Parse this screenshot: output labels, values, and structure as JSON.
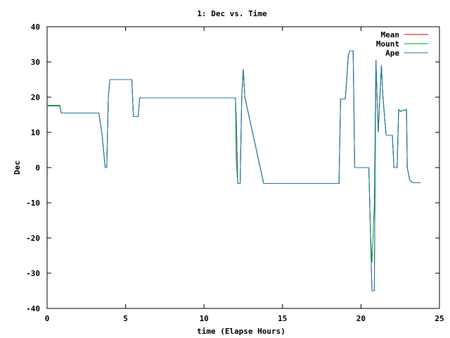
{
  "chart_data": {
    "type": "line",
    "title": "1: Dec vs. Time",
    "xlabel": "time (Elapse Hours)",
    "ylabel": "Dec",
    "xlim": [
      0,
      25
    ],
    "ylim": [
      -40,
      40
    ],
    "xticks": [
      "0",
      "5",
      "10",
      "15",
      "20",
      "25"
    ],
    "yticks": [
      "40",
      "30",
      "20",
      "10",
      "0",
      "-10",
      "-20",
      "-30",
      "-40"
    ],
    "xtick_values": [
      0,
      5,
      10,
      15,
      20,
      25
    ],
    "ytick_values": [
      40,
      30,
      20,
      10,
      0,
      -10,
      -20,
      -30,
      -40
    ],
    "grid": false,
    "legend_position": "top-right",
    "series": [
      {
        "name": "Mean",
        "color": "#cc0000",
        "x": [
          0,
          0.8,
          0.9,
          3.3,
          3.5,
          3.7,
          3.8,
          3.9,
          4.0,
          5.4,
          5.5,
          5.8,
          5.9,
          12.0,
          12.05,
          12.15,
          12.3,
          12.4,
          12.5,
          12.6,
          13.8,
          18.3,
          18.6,
          18.7,
          19.0,
          19.2,
          19.3,
          19.5,
          19.6,
          20.5,
          20.6,
          20.7,
          20.85,
          20.95,
          21.1,
          21.3,
          21.4,
          21.6,
          21.7,
          22.0,
          22.1,
          22.3,
          22.4,
          22.5,
          22.9,
          22.95,
          23.1,
          23.3,
          23.8
        ],
        "y": [
          17.7,
          17.7,
          15.5,
          15.5,
          9.5,
          0,
          0,
          20,
          25,
          25,
          14.5,
          14.5,
          19.8,
          19.8,
          14,
          -4.5,
          -4.5,
          20,
          28,
          20,
          -4.5,
          -4.5,
          -4.5,
          19.5,
          19.5,
          32,
          33.2,
          33.2,
          0,
          0,
          -18,
          -35,
          -35,
          30.5,
          10,
          29,
          20,
          9.2,
          9.2,
          9.2,
          0,
          0,
          16.5,
          16,
          16.5,
          0,
          -3.5,
          -4.3,
          -4.3
        ]
      },
      {
        "name": "Mount",
        "color": "#00aa00",
        "x": [
          0,
          0.8,
          0.9,
          3.3,
          3.5,
          3.7,
          3.8,
          3.9,
          4.0,
          5.4,
          5.5,
          5.8,
          5.9,
          12.0,
          12.05,
          12.15,
          12.3,
          12.4,
          12.5,
          12.6,
          13.8,
          18.3,
          18.6,
          18.7,
          19.0,
          19.2,
          19.3,
          19.5,
          19.6,
          20.5,
          20.6,
          20.7,
          20.85,
          20.95,
          21.1,
          21.3,
          21.4,
          21.6,
          21.7,
          22.0,
          22.1,
          22.3,
          22.4,
          22.5,
          22.9,
          22.95,
          23.1,
          23.3,
          23.8
        ],
        "y": [
          17.7,
          17.7,
          15.5,
          15.5,
          9.5,
          0,
          0,
          20,
          25,
          25,
          14.5,
          14.5,
          19.8,
          19.8,
          2,
          -4.5,
          -4.5,
          20,
          28,
          20,
          -4.5,
          -4.5,
          -4.5,
          19.5,
          19.5,
          32,
          33.2,
          33.2,
          0,
          0,
          -18,
          -27,
          -10,
          30.5,
          10,
          29,
          20,
          9.2,
          9.2,
          9.2,
          0,
          0,
          16.5,
          16,
          16.5,
          0,
          -3.5,
          -4.3,
          -4.3
        ]
      },
      {
        "name": "Ape",
        "color": "#1f77b4",
        "x": [
          0,
          0.8,
          0.9,
          3.3,
          3.5,
          3.7,
          3.8,
          3.9,
          4.0,
          5.4,
          5.5,
          5.8,
          5.9,
          12.0,
          12.05,
          12.15,
          12.3,
          12.4,
          12.5,
          12.6,
          13.8,
          18.3,
          18.6,
          18.7,
          19.0,
          19.2,
          19.3,
          19.5,
          19.6,
          20.5,
          20.6,
          20.7,
          20.85,
          20.95,
          21.1,
          21.3,
          21.4,
          21.6,
          21.7,
          22.0,
          22.1,
          22.3,
          22.4,
          22.5,
          22.9,
          22.95,
          23.1,
          23.3,
          23.8
        ],
        "y": [
          17.5,
          17.5,
          15.5,
          15.5,
          9.5,
          0,
          0,
          20,
          25,
          25,
          14.5,
          14.5,
          19.8,
          19.8,
          14,
          -4.5,
          -4.5,
          20,
          28,
          20,
          -4.5,
          -4.5,
          -4.5,
          19.5,
          19.5,
          32,
          33.2,
          33.2,
          0,
          0,
          -18,
          -35,
          -35,
          30.5,
          10,
          29,
          20,
          9.2,
          9.2,
          9.2,
          0,
          0,
          16.5,
          16,
          16.5,
          0,
          -3.5,
          -4.3,
          -4.3
        ]
      }
    ]
  }
}
